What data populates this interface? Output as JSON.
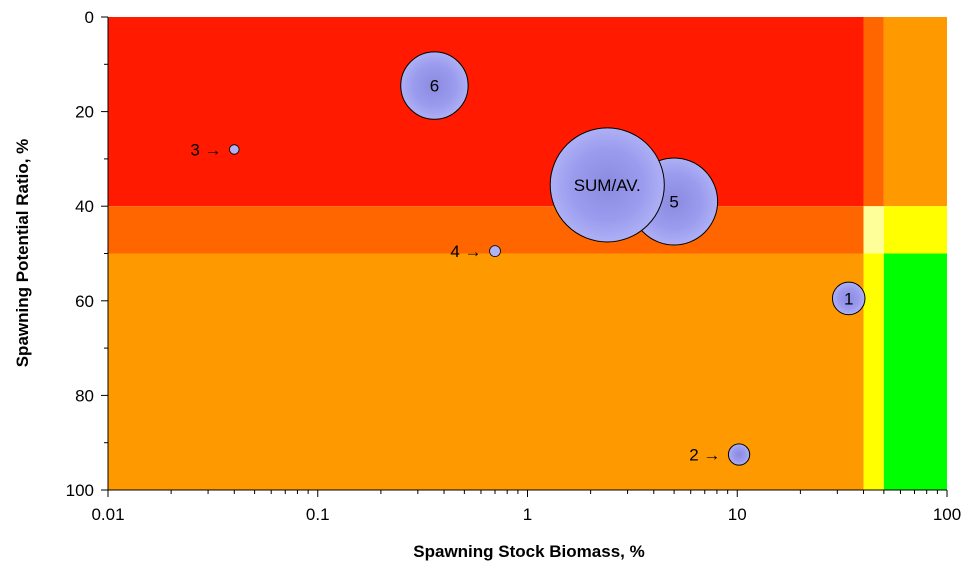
{
  "chart_data": {
    "type": "scatter",
    "subtype": "bubble",
    "title": "",
    "xlabel": "Spawning Stock Biomass, %",
    "ylabel": "Spawning Potential Ratio, %",
    "x_scale": "log",
    "xlim": [
      0.01,
      100
    ],
    "ylim": [
      0,
      100
    ],
    "y_inverted": true,
    "grid": false,
    "x_ticks": [
      "0.01",
      "0.1",
      "1",
      "10",
      "100"
    ],
    "y_ticks": [
      "0",
      "20",
      "40",
      "60",
      "80",
      "100"
    ],
    "zones": [
      {
        "x_range": [
          0.01,
          40
        ],
        "y_range": [
          0,
          40
        ],
        "color": "#ff1a00"
      },
      {
        "x_range": [
          40,
          50
        ],
        "y_range": [
          0,
          40
        ],
        "color": "#ff6600"
      },
      {
        "x_range": [
          50,
          100
        ],
        "y_range": [
          0,
          40
        ],
        "color": "#ff9900"
      },
      {
        "x_range": [
          0.01,
          40
        ],
        "y_range": [
          40,
          50
        ],
        "color": "#ff6600"
      },
      {
        "x_range": [
          40,
          50
        ],
        "y_range": [
          40,
          50
        ],
        "color": "#ffff99"
      },
      {
        "x_range": [
          50,
          100
        ],
        "y_range": [
          40,
          50
        ],
        "color": "#ffff00"
      },
      {
        "x_range": [
          0.01,
          40
        ],
        "y_range": [
          50,
          100
        ],
        "color": "#ff9900"
      },
      {
        "x_range": [
          40,
          50
        ],
        "y_range": [
          50,
          100
        ],
        "color": "#ffff00"
      },
      {
        "x_range": [
          50,
          100
        ],
        "y_range": [
          50,
          100
        ],
        "color": "#00ff00"
      }
    ],
    "bubble_color": "#8f8fe6",
    "bubbles": [
      {
        "label": "6",
        "x": 0.36,
        "y": 14.5,
        "size": 15
      },
      {
        "label": "3",
        "x": 0.04,
        "y": 28,
        "size": 0.3,
        "pointer": "3 →"
      },
      {
        "label": "5",
        "x": 5.0,
        "y": 39,
        "size": 25
      },
      {
        "label": "SUM/AV.",
        "x": 2.4,
        "y": 35.5,
        "size": 43
      },
      {
        "label": "4",
        "x": 0.7,
        "y": 49.5,
        "size": 0.4,
        "pointer": "4 →"
      },
      {
        "label": "1",
        "x": 34,
        "y": 59.5,
        "size": 3.5
      },
      {
        "label": "2",
        "x": 10.2,
        "y": 92.5,
        "size": 1.5,
        "pointer": "2 →"
      }
    ]
  }
}
